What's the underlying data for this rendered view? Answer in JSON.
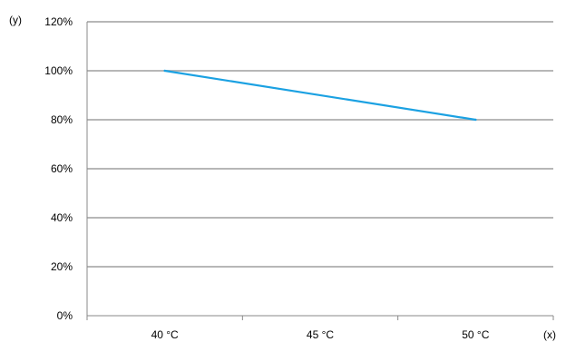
{
  "chart_data": {
    "type": "line",
    "title": "",
    "xlabel": "(x)",
    "ylabel": "(y)",
    "categories": [
      "40 °C",
      "45 °C",
      "50 °C"
    ],
    "y_tick_labels": [
      "0%",
      "20%",
      "40%",
      "60%",
      "80%",
      "100%",
      "120%"
    ],
    "ylim": [
      0,
      120
    ],
    "grid": true,
    "series": [
      {
        "x": [
          "40 °C",
          "50 °C"
        ],
        "values": [
          100,
          80
        ],
        "color": "#1ba1e2"
      }
    ]
  },
  "colors": {
    "gridline": "#b7b7b7",
    "axis": "#888888",
    "line": "#1ba1e2"
  }
}
